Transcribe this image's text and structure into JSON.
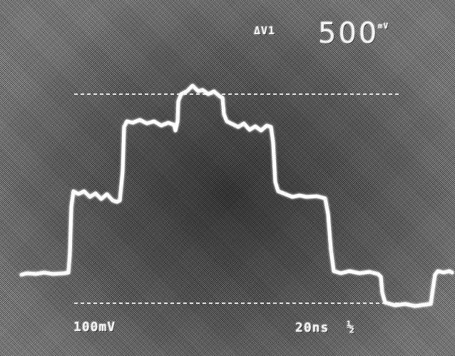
{
  "screen": {
    "delta_label": "ΔV1",
    "readout_value": "500",
    "readout_unit": "mV",
    "volts_per_div": "100mV",
    "time_per_div": "20ns",
    "time_marker": "½"
  },
  "colors": {
    "trace": "#ffffff",
    "background": "#6a6a6a"
  }
}
